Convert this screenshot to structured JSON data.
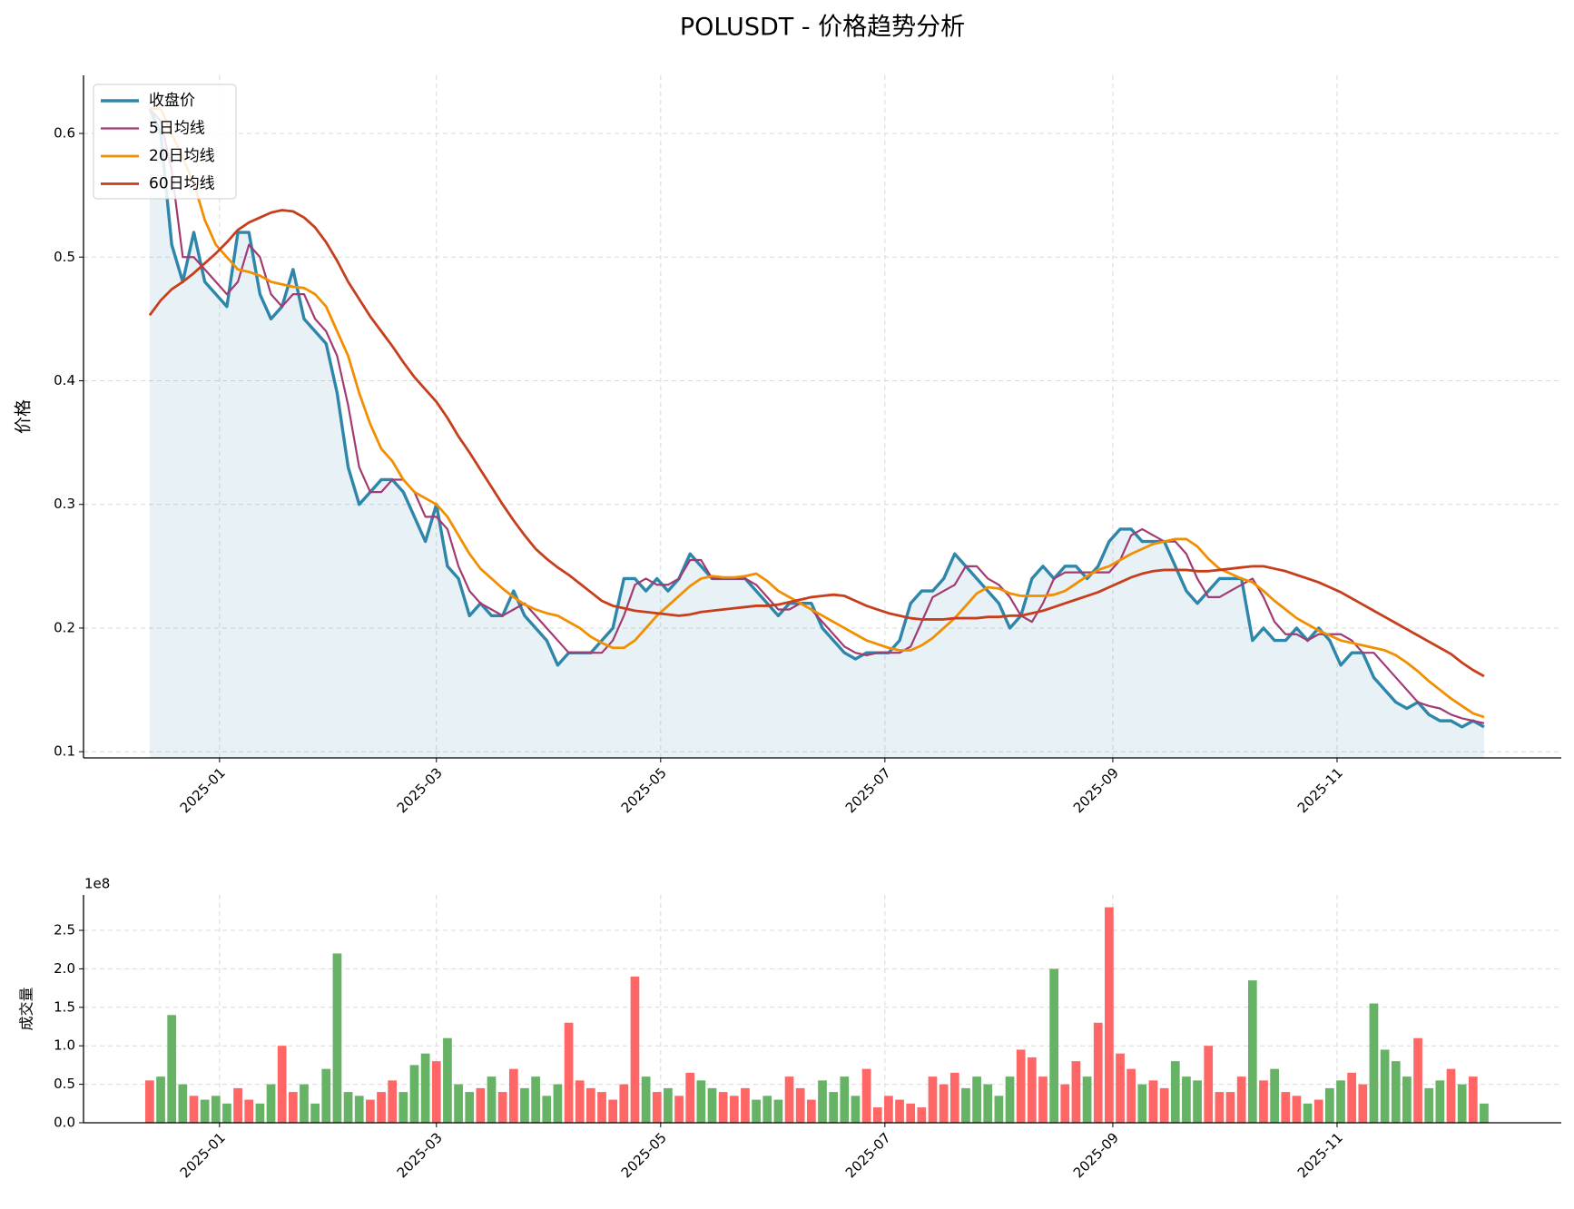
{
  "chart_data": [
    {
      "type": "line",
      "title": "POLUSDT - 价格趋势分析",
      "ylabel": "价格",
      "legend": "upper left",
      "grid": true,
      "x": [
        -19,
        -16,
        -13,
        -10,
        -7,
        -4,
        -1,
        2,
        5,
        8,
        11,
        14,
        17,
        20,
        23,
        26,
        29,
        32,
        35,
        38,
        41,
        44,
        47,
        50,
        53,
        56,
        59,
        62,
        65,
        68,
        71,
        74,
        77,
        80,
        83,
        86,
        89,
        92,
        95,
        98,
        101,
        104,
        107,
        110,
        113,
        116,
        119,
        122,
        125,
        128,
        131,
        134,
        137,
        140,
        143,
        146,
        149,
        152,
        155,
        158,
        161,
        164,
        167,
        170,
        173,
        176,
        179,
        182,
        185,
        188,
        191,
        194,
        197,
        200,
        203,
        206,
        209,
        212,
        215,
        218,
        221,
        224,
        227,
        230,
        233,
        236,
        239,
        242,
        245,
        248,
        251,
        254,
        257,
        260,
        263,
        266,
        269,
        272,
        275,
        278,
        281,
        284,
        287,
        290,
        293,
        296,
        299,
        302,
        305,
        308,
        311,
        314,
        317,
        320,
        323,
        326,
        329,
        332,
        335,
        338,
        341,
        344
      ],
      "xlim": [
        -37,
        365
      ],
      "xticks": [
        {
          "value": 0,
          "label": "2025-01"
        },
        {
          "value": 59,
          "label": "2025-03"
        },
        {
          "value": 120,
          "label": "2025-05"
        },
        {
          "value": 181,
          "label": "2025-07"
        },
        {
          "value": 243,
          "label": "2025-09"
        },
        {
          "value": 304,
          "label": "2025-11"
        }
      ],
      "ylim": [
        0.095,
        0.647
      ],
      "yticks": [
        0.1,
        0.2,
        0.3,
        0.4,
        0.5,
        0.6
      ],
      "series": [
        {
          "name": "收盘价",
          "color": "#2e86ab",
          "values": [
            0.62,
            0.6,
            0.51,
            0.48,
            0.52,
            0.48,
            0.47,
            0.46,
            0.52,
            0.52,
            0.47,
            0.45,
            0.46,
            0.49,
            0.45,
            0.44,
            0.43,
            0.39,
            0.33,
            0.3,
            0.31,
            0.32,
            0.32,
            0.31,
            0.29,
            0.27,
            0.3,
            0.25,
            0.24,
            0.21,
            0.22,
            0.21,
            0.21,
            0.23,
            0.21,
            0.2,
            0.19,
            0.17,
            0.18,
            0.18,
            0.18,
            0.19,
            0.2,
            0.24,
            0.24,
            0.23,
            0.24,
            0.23,
            0.24,
            0.26,
            0.25,
            0.24,
            0.24,
            0.24,
            0.24,
            0.23,
            0.22,
            0.21,
            0.22,
            0.22,
            0.22,
            0.2,
            0.19,
            0.18,
            0.175,
            0.18,
            0.18,
            0.18,
            0.19,
            0.22,
            0.23,
            0.23,
            0.24,
            0.26,
            0.25,
            0.24,
            0.23,
            0.22,
            0.2,
            0.21,
            0.24,
            0.25,
            0.24,
            0.25,
            0.25,
            0.24,
            0.25,
            0.27,
            0.28,
            0.28,
            0.27,
            0.27,
            0.27,
            0.25,
            0.23,
            0.22,
            0.23,
            0.24,
            0.24,
            0.24,
            0.19,
            0.2,
            0.19,
            0.19,
            0.2,
            0.19,
            0.2,
            0.19,
            0.17,
            0.18,
            0.18,
            0.16,
            0.15,
            0.14,
            0.135,
            0.14,
            0.13,
            0.125,
            0.125,
            0.12,
            0.125,
            0.12
          ]
        },
        {
          "name": "5日均线",
          "color": "#a23b72",
          "values": [
            0.62,
            0.61,
            0.57,
            0.5,
            0.5,
            0.49,
            0.48,
            0.47,
            0.48,
            0.51,
            0.5,
            0.47,
            0.46,
            0.47,
            0.47,
            0.45,
            0.44,
            0.42,
            0.38,
            0.33,
            0.31,
            0.31,
            0.32,
            0.32,
            0.31,
            0.29,
            0.29,
            0.28,
            0.25,
            0.23,
            0.22,
            0.215,
            0.21,
            0.215,
            0.22,
            0.21,
            0.2,
            0.19,
            0.18,
            0.18,
            0.18,
            0.18,
            0.19,
            0.21,
            0.235,
            0.24,
            0.235,
            0.235,
            0.24,
            0.255,
            0.255,
            0.24,
            0.24,
            0.24,
            0.24,
            0.235,
            0.225,
            0.215,
            0.215,
            0.22,
            0.215,
            0.205,
            0.195,
            0.185,
            0.18,
            0.178,
            0.18,
            0.18,
            0.18,
            0.185,
            0.205,
            0.225,
            0.23,
            0.235,
            0.25,
            0.25,
            0.24,
            0.235,
            0.225,
            0.21,
            0.205,
            0.22,
            0.24,
            0.245,
            0.245,
            0.245,
            0.245,
            0.245,
            0.255,
            0.275,
            0.28,
            0.275,
            0.27,
            0.27,
            0.26,
            0.24,
            0.225,
            0.225,
            0.23,
            0.235,
            0.24,
            0.225,
            0.205,
            0.195,
            0.195,
            0.19,
            0.195,
            0.195,
            0.195,
            0.19,
            0.18,
            0.18,
            0.17,
            0.16,
            0.15,
            0.14,
            0.137,
            0.135,
            0.13,
            0.127,
            0.125,
            0.123
          ]
        },
        {
          "name": "20日均线",
          "color": "#f18f01",
          "values": [
            0.62,
            0.62,
            0.6,
            0.58,
            0.56,
            0.53,
            0.51,
            0.5,
            0.49,
            0.488,
            0.485,
            0.48,
            0.478,
            0.476,
            0.475,
            0.47,
            0.46,
            0.44,
            0.42,
            0.39,
            0.365,
            0.345,
            0.335,
            0.32,
            0.31,
            0.305,
            0.3,
            0.29,
            0.275,
            0.26,
            0.248,
            0.24,
            0.232,
            0.225,
            0.219,
            0.215,
            0.212,
            0.21,
            0.205,
            0.2,
            0.193,
            0.188,
            0.184,
            0.184,
            0.19,
            0.2,
            0.21,
            0.218,
            0.226,
            0.234,
            0.24,
            0.242,
            0.241,
            0.241,
            0.242,
            0.244,
            0.238,
            0.23,
            0.225,
            0.22,
            0.215,
            0.21,
            0.205,
            0.2,
            0.195,
            0.19,
            0.187,
            0.184,
            0.182,
            0.182,
            0.186,
            0.192,
            0.2,
            0.208,
            0.218,
            0.228,
            0.233,
            0.232,
            0.228,
            0.226,
            0.226,
            0.226,
            0.227,
            0.23,
            0.236,
            0.242,
            0.247,
            0.25,
            0.255,
            0.26,
            0.264,
            0.268,
            0.27,
            0.272,
            0.272,
            0.266,
            0.256,
            0.248,
            0.244,
            0.24,
            0.237,
            0.23,
            0.222,
            0.215,
            0.208,
            0.203,
            0.198,
            0.194,
            0.19,
            0.188,
            0.186,
            0.184,
            0.182,
            0.178,
            0.172,
            0.165,
            0.157,
            0.15,
            0.143,
            0.137,
            0.131,
            0.128
          ]
        },
        {
          "name": "60日均线",
          "color": "#c73e1d",
          "values": [
            0.453,
            0.465,
            0.474,
            0.48,
            0.487,
            0.495,
            0.503,
            0.512,
            0.522,
            0.528,
            0.532,
            0.536,
            0.538,
            0.537,
            0.532,
            0.524,
            0.512,
            0.497,
            0.48,
            0.466,
            0.452,
            0.44,
            0.428,
            0.415,
            0.403,
            0.393,
            0.383,
            0.37,
            0.355,
            0.342,
            0.328,
            0.314,
            0.3,
            0.287,
            0.275,
            0.264,
            0.256,
            0.249,
            0.243,
            0.236,
            0.229,
            0.222,
            0.218,
            0.216,
            0.214,
            0.213,
            0.212,
            0.211,
            0.21,
            0.211,
            0.213,
            0.214,
            0.215,
            0.216,
            0.217,
            0.218,
            0.218,
            0.219,
            0.221,
            0.223,
            0.225,
            0.226,
            0.227,
            0.226,
            0.222,
            0.218,
            0.215,
            0.212,
            0.21,
            0.208,
            0.207,
            0.207,
            0.207,
            0.208,
            0.208,
            0.208,
            0.209,
            0.209,
            0.21,
            0.21,
            0.212,
            0.214,
            0.217,
            0.22,
            0.223,
            0.226,
            0.229,
            0.233,
            0.237,
            0.241,
            0.244,
            0.246,
            0.247,
            0.247,
            0.247,
            0.246,
            0.246,
            0.247,
            0.248,
            0.249,
            0.25,
            0.25,
            0.248,
            0.246,
            0.243,
            0.24,
            0.237,
            0.233,
            0.229,
            0.224,
            0.219,
            0.214,
            0.209,
            0.204,
            0.199,
            0.194,
            0.189,
            0.184,
            0.179,
            0.172,
            0.166,
            0.161
          ]
        }
      ]
    },
    {
      "type": "bar",
      "ylabel": "成交量",
      "yaxis_offset": "1e8",
      "grid": true,
      "up_color": "#ff6666",
      "down_color": "#66b366",
      "x": [
        -19,
        -16,
        -13,
        -10,
        -7,
        -4,
        -1,
        2,
        5,
        8,
        11,
        14,
        17,
        20,
        23,
        26,
        29,
        32,
        35,
        38,
        41,
        44,
        47,
        50,
        53,
        56,
        59,
        62,
        65,
        68,
        71,
        74,
        77,
        80,
        83,
        86,
        89,
        92,
        95,
        98,
        101,
        104,
        107,
        110,
        113,
        116,
        119,
        122,
        125,
        128,
        131,
        134,
        137,
        140,
        143,
        146,
        149,
        152,
        155,
        158,
        161,
        164,
        167,
        170,
        173,
        176,
        179,
        182,
        185,
        188,
        191,
        194,
        197,
        200,
        203,
        206,
        209,
        212,
        215,
        218,
        221,
        224,
        227,
        230,
        233,
        236,
        239,
        242,
        245,
        248,
        251,
        254,
        257,
        260,
        263,
        266,
        269,
        272,
        275,
        278,
        281,
        284,
        287,
        290,
        293,
        296,
        299,
        302,
        305,
        308,
        311,
        314,
        317,
        320,
        323,
        326,
        329,
        332,
        335,
        338,
        341,
        344
      ],
      "xlim": [
        -37,
        365
      ],
      "xticks": [
        {
          "value": 0,
          "label": "2025-01"
        },
        {
          "value": 59,
          "label": "2025-03"
        },
        {
          "value": 120,
          "label": "2025-05"
        },
        {
          "value": 181,
          "label": "2025-07"
        },
        {
          "value": 243,
          "label": "2025-09"
        },
        {
          "value": 304,
          "label": "2025-11"
        }
      ],
      "ylim": [
        0,
        296000000
      ],
      "yticks": [
        {
          "value": 0,
          "label": "0.0"
        },
        {
          "value": 50000000,
          "label": "0.5"
        },
        {
          "value": 100000000,
          "label": "1.0"
        },
        {
          "value": 150000000,
          "label": "1.5"
        },
        {
          "value": 200000000,
          "label": "2.0"
        },
        {
          "value": 250000000,
          "label": "2.5"
        }
      ],
      "values": [
        55000000,
        60000000,
        140000000,
        50000000,
        35000000,
        30000000,
        35000000,
        25000000,
        45000000,
        30000000,
        25000000,
        50000000,
        100000000,
        40000000,
        50000000,
        25000000,
        70000000,
        220000000,
        40000000,
        35000000,
        30000000,
        40000000,
        55000000,
        40000000,
        75000000,
        90000000,
        80000000,
        110000000,
        50000000,
        40000000,
        45000000,
        60000000,
        40000000,
        70000000,
        45000000,
        60000000,
        35000000,
        50000000,
        130000000,
        55000000,
        45000000,
        40000000,
        30000000,
        50000000,
        190000000,
        60000000,
        40000000,
        45000000,
        35000000,
        65000000,
        55000000,
        45000000,
        40000000,
        35000000,
        45000000,
        30000000,
        35000000,
        30000000,
        60000000,
        45000000,
        30000000,
        55000000,
        40000000,
        60000000,
        35000000,
        70000000,
        20000000,
        35000000,
        30000000,
        25000000,
        20000000,
        60000000,
        50000000,
        65000000,
        45000000,
        60000000,
        50000000,
        35000000,
        60000000,
        95000000,
        85000000,
        60000000,
        200000000,
        50000000,
        80000000,
        60000000,
        130000000,
        280000000,
        90000000,
        70000000,
        50000000,
        55000000,
        45000000,
        80000000,
        60000000,
        55000000,
        100000000,
        40000000,
        40000000,
        60000000,
        185000000,
        55000000,
        70000000,
        40000000,
        35000000,
        25000000,
        30000000,
        45000000,
        55000000,
        65000000,
        50000000,
        155000000,
        95000000,
        80000000,
        60000000,
        110000000,
        45000000,
        55000000,
        70000000,
        50000000,
        60000000,
        25000000
      ]
    }
  ]
}
